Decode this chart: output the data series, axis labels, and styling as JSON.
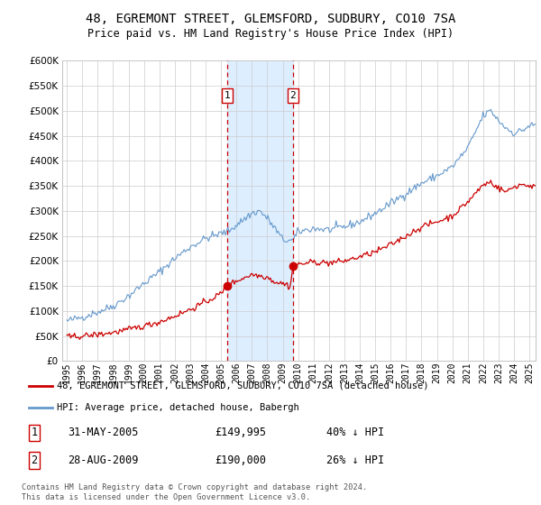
{
  "title": "48, EGREMONT STREET, GLEMSFORD, SUDBURY, CO10 7SA",
  "subtitle": "Price paid vs. HM Land Registry's House Price Index (HPI)",
  "red_label": "48, EGREMONT STREET, GLEMSFORD, SUDBURY, CO10 7SA (detached house)",
  "blue_label": "HPI: Average price, detached house, Babergh",
  "transaction1_date": "31-MAY-2005",
  "transaction1_price": 149995,
  "transaction1_pct": "40% ↓ HPI",
  "transaction2_date": "28-AUG-2009",
  "transaction2_price": 190000,
  "transaction2_pct": "26% ↓ HPI",
  "footer": "Contains HM Land Registry data © Crown copyright and database right 2024.\nThis data is licensed under the Open Government Licence v3.0.",
  "vline1_x": 2005.41,
  "vline2_x": 2009.66,
  "ylim": [
    0,
    600000
  ],
  "xlim": [
    1994.7,
    2025.4
  ],
  "red_color": "#cc0000",
  "blue_color": "#6699cc",
  "shade_color": "#ddeeff",
  "marker_box_color": "#cc0000",
  "grid_color": "#cccccc",
  "bg_color": "#ffffff"
}
